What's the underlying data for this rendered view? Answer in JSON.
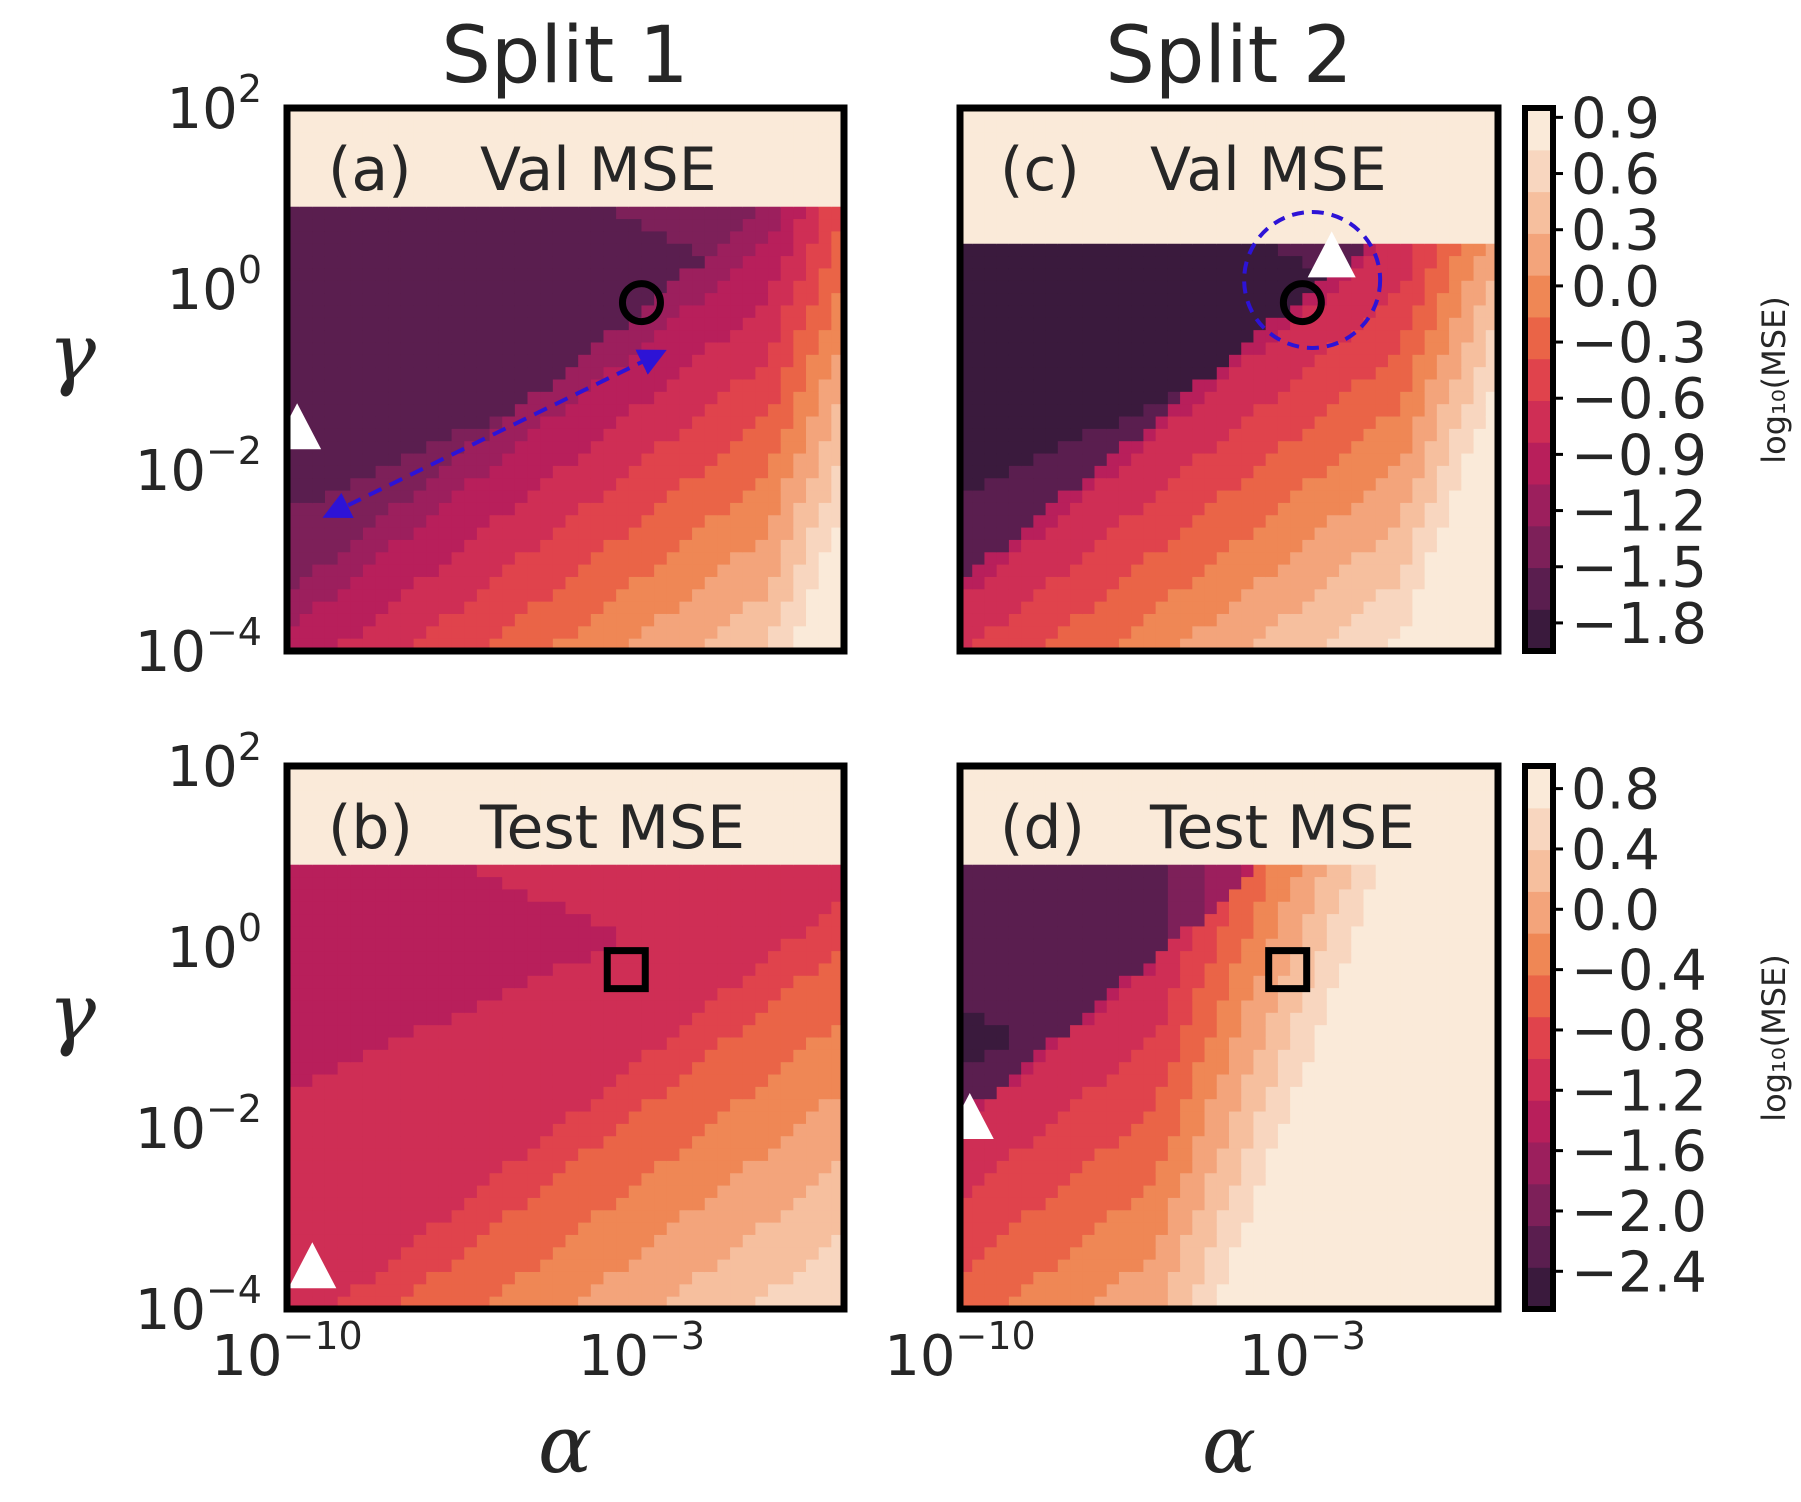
{
  "chart_data": [
    {
      "type": "heatmap",
      "id": "a",
      "column_title": "Split 1",
      "panel_label": "(a)",
      "metric": "Val MSE",
      "xlabel": "α",
      "ylabel": "γ",
      "xscale": "log",
      "xlim_exp": [
        -10,
        1
      ],
      "yscale": "log",
      "ylim_exp": [
        -4,
        2
      ],
      "y_ticks": [
        {
          "base": "10",
          "exp": "2"
        },
        {
          "base": "10",
          "exp": "0"
        },
        {
          "base": "10",
          "exp": "−2"
        },
        {
          "base": "10",
          "exp": "−4"
        }
      ],
      "x_ticks": [],
      "field": {
        "ridge_alpha_exp": -2.5,
        "ridge_gamma_exp": 0.0,
        "level_low": -1.7,
        "level_band": -1.2,
        "fan_slope": 0.45,
        "cutoff_gamma_exp": 0.9
      },
      "markers": [
        {
          "shape": "circle",
          "color": "#000000",
          "alpha_exp": -3.0,
          "gamma_exp": -0.15
        },
        {
          "shape": "triangle",
          "color": "#ffffff",
          "alpha_exp": -9.8,
          "gamma_exp": -1.55
        }
      ],
      "arrow": {
        "from_alpha_exp": -9.2,
        "from_gamma_exp": -2.5,
        "to_alpha_exp": -2.6,
        "to_gamma_exp": -0.7,
        "color": "#2d13d6"
      }
    },
    {
      "type": "heatmap",
      "id": "b",
      "panel_label": "(b)",
      "metric": "Test MSE",
      "xlabel": "α",
      "ylabel": "γ",
      "xscale": "log",
      "xlim_exp": [
        -10,
        1
      ],
      "yscale": "log",
      "ylim_exp": [
        -4,
        2
      ],
      "y_ticks": [
        {
          "base": "10",
          "exp": "2"
        },
        {
          "base": "10",
          "exp": "0"
        },
        {
          "base": "10",
          "exp": "−2"
        },
        {
          "base": "10",
          "exp": "−4"
        }
      ],
      "x_ticks": [
        {
          "base": "10",
          "exp": "−10",
          "value": -10
        },
        {
          "base": "10",
          "exp": "−3",
          "value": -3
        }
      ],
      "field": {
        "ridge_alpha_exp": 0.0,
        "ridge_gamma_exp": 0.1,
        "level_low": -1.4,
        "level_band": -0.9,
        "fan_slope": 0.45,
        "cutoff_gamma_exp": 0.9
      },
      "markers": [
        {
          "shape": "square",
          "color": "#000000",
          "alpha_exp": -3.3,
          "gamma_exp": -0.25
        },
        {
          "shape": "triangle",
          "color": "#ffffff",
          "alpha_exp": -9.5,
          "gamma_exp": -3.55
        }
      ]
    },
    {
      "type": "heatmap",
      "id": "c",
      "column_title": "Split 2",
      "panel_label": "(c)",
      "metric": "Val MSE",
      "xlabel": "α",
      "ylabel": "γ",
      "xscale": "log",
      "xlim_exp": [
        -10,
        1
      ],
      "yscale": "log",
      "ylim_exp": [
        -4,
        2
      ],
      "y_ticks": [],
      "x_ticks": [],
      "field": {
        "ridge_alpha_exp": -3.0,
        "ridge_gamma_exp": -0.1,
        "level_low": -1.9,
        "level_band": -0.9,
        "fan_slope": 0.45,
        "cutoff_gamma_exp": 0.5
      },
      "markers": [
        {
          "shape": "circle",
          "color": "#000000",
          "alpha_exp": -3.0,
          "gamma_exp": -0.15
        },
        {
          "shape": "triangle",
          "color": "#ffffff",
          "alpha_exp": -2.4,
          "gamma_exp": 0.35
        }
      ],
      "dashed_circle": {
        "alpha_exp": -2.8,
        "gamma_exp": 0.1,
        "color": "#2d13d6"
      }
    },
    {
      "type": "heatmap",
      "id": "d",
      "panel_label": "(d)",
      "metric": "Test MSE",
      "xlabel": "α",
      "ylabel": "γ",
      "xscale": "log",
      "xlim_exp": [
        -10,
        1
      ],
      "yscale": "log",
      "ylim_exp": [
        -4,
        2
      ],
      "y_ticks": [],
      "x_ticks": [
        {
          "base": "10",
          "exp": "−10",
          "value": -10
        },
        {
          "base": "10",
          "exp": "−3",
          "value": -3
        }
      ],
      "field": {
        "ridge_alpha_exp": -8.0,
        "ridge_gamma_exp": -1.0,
        "level_low": -2.4,
        "level_band": -1.3,
        "fan_slope": 0.45,
        "cutoff_gamma_exp": 0.9
      },
      "markers": [
        {
          "shape": "square",
          "color": "#000000",
          "alpha_exp": -3.3,
          "gamma_exp": -0.25
        },
        {
          "shape": "triangle",
          "color": "#ffffff",
          "alpha_exp": -9.8,
          "gamma_exp": -1.9
        }
      ]
    }
  ],
  "colorbars": [
    {
      "label": "log₁₀(MSE)",
      "range": [
        -1.95,
        0.95
      ],
      "ticks": [
        {
          "label": "0.9",
          "value": 0.9
        },
        {
          "label": "0.6",
          "value": 0.6
        },
        {
          "label": "0.3",
          "value": 0.3
        },
        {
          "label": "0.0",
          "value": 0.0
        },
        {
          "label": "−0.3",
          "value": -0.3
        },
        {
          "label": "−0.6",
          "value": -0.6
        },
        {
          "label": "−0.9",
          "value": -0.9
        },
        {
          "label": "−1.2",
          "value": -1.2
        },
        {
          "label": "−1.5",
          "value": -1.5
        },
        {
          "label": "−1.8",
          "value": -1.8
        }
      ]
    },
    {
      "label": "log₁₀(MSE)",
      "range": [
        -2.65,
        0.95
      ],
      "ticks": [
        {
          "label": "0.8",
          "value": 0.8
        },
        {
          "label": "0.4",
          "value": 0.4
        },
        {
          "label": "0.0",
          "value": 0.0
        },
        {
          "label": "−0.4",
          "value": -0.4
        },
        {
          "label": "−0.8",
          "value": -0.8
        },
        {
          "label": "−1.2",
          "value": -1.2
        },
        {
          "label": "−1.6",
          "value": -1.6
        },
        {
          "label": "−2.0",
          "value": -2.0
        },
        {
          "label": "−2.4",
          "value": -2.4
        }
      ]
    }
  ],
  "colormap": [
    "#3a1a3d",
    "#5a1e4f",
    "#7d2059",
    "#9c1f5d",
    "#b81f5b",
    "#cf2e55",
    "#e0434c",
    "#ea6447",
    "#ef8755",
    "#f3a47b",
    "#f6bf9e",
    "#f8d6bf",
    "#faead9"
  ]
}
